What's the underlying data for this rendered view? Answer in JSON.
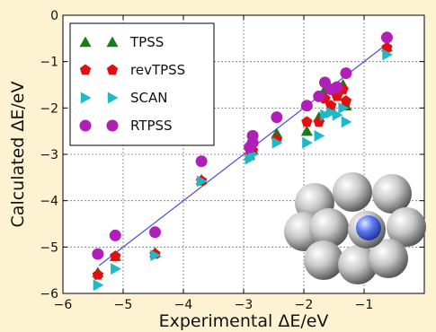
{
  "chart_data": {
    "type": "scatter",
    "xlabel": "Experimental ΔE/eV",
    "ylabel": "Calculated ΔE/eV",
    "xlim": [
      -6,
      0
    ],
    "ylim": [
      -6,
      0
    ],
    "x_ticks": [
      "−6",
      "−5",
      "−4",
      "−3",
      "−2",
      "−1"
    ],
    "y_ticks": [
      "−6",
      "−5",
      "−4",
      "−3",
      "−2",
      "−1",
      "0"
    ],
    "grid": true,
    "legend_position": "top-left",
    "reference_line": {
      "label": "",
      "x": [
        -5.4,
        -0.6
      ],
      "y": [
        -5.4,
        -0.6
      ],
      "color": "#4a4ae0"
    },
    "series": [
      {
        "name": "TPSS",
        "marker": "triangle-up",
        "color": "#1a7a1a",
        "points": [
          [
            -5.42,
            -5.55
          ],
          [
            -5.13,
            -5.2
          ],
          [
            -4.47,
            -5.12
          ],
          [
            -3.7,
            -3.55
          ],
          [
            -2.9,
            -3.02
          ],
          [
            -2.85,
            -2.9
          ],
          [
            -2.45,
            -2.55
          ],
          [
            -1.95,
            -2.5
          ],
          [
            -1.75,
            -2.2
          ],
          [
            -1.55,
            -2.0
          ],
          [
            -1.3,
            -1.95
          ],
          [
            -1.65,
            -1.6
          ],
          [
            -1.45,
            -1.62
          ],
          [
            -1.35,
            -1.5
          ],
          [
            -0.62,
            -0.68
          ]
        ]
      },
      {
        "name": "revTPSS",
        "marker": "pentagon",
        "color": "#e01010",
        "points": [
          [
            -5.42,
            -5.6
          ],
          [
            -5.13,
            -5.2
          ],
          [
            -4.47,
            -5.15
          ],
          [
            -3.7,
            -3.57
          ],
          [
            -2.9,
            -3.02
          ],
          [
            -2.85,
            -2.92
          ],
          [
            -2.45,
            -2.68
          ],
          [
            -1.95,
            -2.3
          ],
          [
            -1.75,
            -2.3
          ],
          [
            -1.55,
            -1.95
          ],
          [
            -1.3,
            -1.85
          ],
          [
            -1.65,
            -1.8
          ],
          [
            -1.45,
            -1.75
          ],
          [
            -1.35,
            -1.6
          ],
          [
            -0.62,
            -0.7
          ]
        ]
      },
      {
        "name": "SCAN",
        "marker": "triangle-right",
        "color": "#20b8c8",
        "points": [
          [
            -5.42,
            -5.82
          ],
          [
            -5.13,
            -5.47
          ],
          [
            -4.47,
            -5.18
          ],
          [
            -3.7,
            -3.58
          ],
          [
            -2.9,
            -3.1
          ],
          [
            -2.85,
            -3.0
          ],
          [
            -2.45,
            -2.75
          ],
          [
            -1.95,
            -2.75
          ],
          [
            -1.75,
            -2.6
          ],
          [
            -1.55,
            -2.1
          ],
          [
            -1.3,
            -2.3
          ],
          [
            -1.65,
            -2.15
          ],
          [
            -1.45,
            -2.15
          ],
          [
            -1.35,
            -2.0
          ],
          [
            -0.62,
            -0.85
          ]
        ]
      },
      {
        "name": "RTPSS",
        "marker": "circle",
        "color": "#b020b8",
        "points": [
          [
            -5.42,
            -5.15
          ],
          [
            -5.13,
            -4.75
          ],
          [
            -4.47,
            -4.68
          ],
          [
            -3.7,
            -3.15
          ],
          [
            -2.9,
            -2.85
          ],
          [
            -2.85,
            -2.6
          ],
          [
            -2.85,
            -2.75
          ],
          [
            -2.45,
            -2.2
          ],
          [
            -1.95,
            -1.95
          ],
          [
            -1.75,
            -1.75
          ],
          [
            -1.65,
            -1.45
          ],
          [
            -1.55,
            -1.6
          ],
          [
            -1.45,
            -1.55
          ],
          [
            -1.3,
            -1.25
          ],
          [
            -0.62,
            -0.48
          ]
        ]
      }
    ]
  }
}
